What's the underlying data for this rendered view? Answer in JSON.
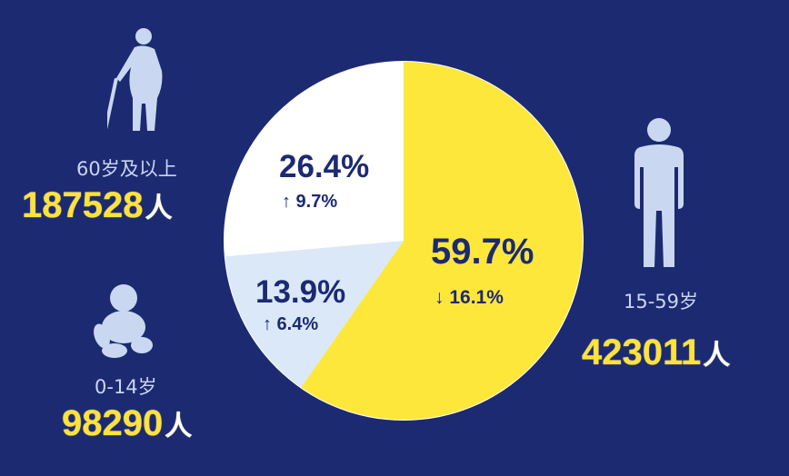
{
  "colors": {
    "background": "#1c2a72",
    "yellow": "#fde73a",
    "white": "#ffffff",
    "light_blue": "#dbe8f8",
    "navy": "#1c2a72",
    "silhouette": "#c9d8f0"
  },
  "chart_data": {
    "type": "pie",
    "start_angle_deg": 0,
    "direction": "clockwise",
    "slices": [
      {
        "label": "15-59岁",
        "value": 59.7,
        "pct_text": "59.7%",
        "change_text": "↓ 16.1%",
        "count": "423011",
        "unit": "人",
        "color": "#fde73a",
        "icon": "standing-person-icon"
      },
      {
        "label": "0-14岁",
        "value": 13.9,
        "pct_text": "13.9%",
        "change_text": "↑ 6.4%",
        "count": "98290",
        "unit": "人",
        "color": "#dbe8f8",
        "icon": "crawling-baby-icon"
      },
      {
        "label": "60岁及以上",
        "value": 26.4,
        "pct_text": "26.4%",
        "change_text": "↑ 9.7%",
        "count": "187528",
        "unit": "人",
        "color": "#ffffff",
        "icon": "elderly-person-with-cane-icon"
      }
    ]
  }
}
